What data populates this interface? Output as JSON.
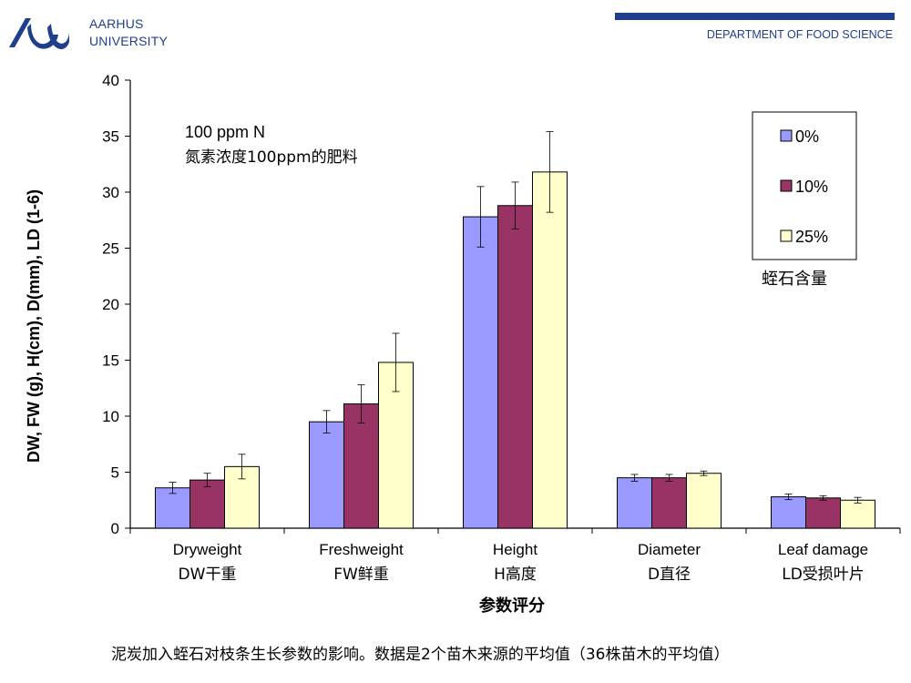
{
  "header": {
    "university_line1": "AARHUS",
    "university_line2": "UNIVERSITY",
    "department": "DEPARTMENT OF FOOD SCIENCE",
    "logo_icon": "aarhus-wave-logo-icon",
    "brand_color": "#1f3e8c"
  },
  "caption": "泥炭加入蛭石对枝条生长参数的影响。数据是2个苗木来源的平均值（36株苗木的平均值）",
  "chart_data": {
    "type": "bar",
    "annotation_line1": "100 ppm N",
    "annotation_line2": "氮素浓度100ppm的肥料",
    "legend_note": "蛭石含量",
    "legend_placement": "top-right",
    "xlabel": "参数评分",
    "ylabel": "DW, FW (g), H(cm), D(mm), LD (1-6)",
    "ylim": [
      0,
      40
    ],
    "yticks": [
      0,
      5,
      10,
      15,
      20,
      25,
      30,
      35,
      40
    ],
    "grid": false,
    "categories": [
      "Dryweight",
      "Freshweight",
      "Height",
      "Diameter",
      "Leaf damage"
    ],
    "categories_cn": [
      "DW干重",
      "FW鲜重",
      "H高度",
      "D直径",
      "LD受损叶片"
    ],
    "series": [
      {
        "name": "0%",
        "color": "#9999ff",
        "values": [
          3.6,
          9.5,
          27.8,
          4.5,
          2.8
        ],
        "errors": [
          0.5,
          1.0,
          2.7,
          0.3,
          0.25
        ]
      },
      {
        "name": "10%",
        "color": "#993366",
        "values": [
          4.3,
          11.1,
          28.8,
          4.5,
          2.7
        ],
        "errors": [
          0.6,
          1.7,
          2.1,
          0.3,
          0.2
        ]
      },
      {
        "name": "25%",
        "color": "#ffffcc",
        "values": [
          5.5,
          14.8,
          31.8,
          4.9,
          2.5
        ],
        "errors": [
          1.1,
          2.6,
          3.6,
          0.2,
          0.25
        ]
      }
    ]
  }
}
